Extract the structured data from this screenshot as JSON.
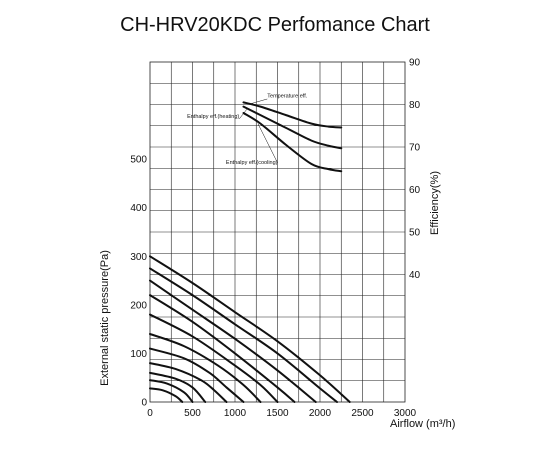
{
  "chart_data": {
    "type": "line",
    "title": "CH-HRV20KDC Perfomance Chart",
    "xlabel": "Airflow (m³/h)",
    "ylabel_left": "External static pressure(Pa)",
    "ylabel_right": "Efficiency(%)",
    "xlim": [
      0,
      3000
    ],
    "ylim_left": [
      0,
      500
    ],
    "ylim_right": [
      40,
      90
    ],
    "x_ticks": [
      "0",
      "500",
      "1000",
      "1500",
      "2000",
      "2500",
      "3000"
    ],
    "y_left_ticks": [
      "0",
      "100",
      "200",
      "300",
      "400",
      "500"
    ],
    "y_right_ticks": [
      "40",
      "50",
      "60",
      "70",
      "80",
      "90"
    ],
    "grid": true,
    "pressure_curves": [
      {
        "x": [
          0,
          500,
          1000,
          1500,
          2000,
          2350
        ],
        "y": [
          300,
          245,
          185,
          125,
          55,
          0
        ]
      },
      {
        "x": [
          0,
          500,
          1000,
          1500,
          2000,
          2200
        ],
        "y": [
          275,
          220,
          160,
          100,
          28,
          0
        ]
      },
      {
        "x": [
          0,
          500,
          1000,
          1500,
          1950
        ],
        "y": [
          250,
          190,
          130,
          65,
          0
        ]
      },
      {
        "x": [
          0,
          500,
          1000,
          1500,
          1700
        ],
        "y": [
          220,
          165,
          100,
          30,
          0
        ]
      },
      {
        "x": [
          0,
          500,
          1000,
          1300,
          1500
        ],
        "y": [
          180,
          135,
          75,
          35,
          0
        ]
      },
      {
        "x": [
          0,
          400,
          800,
          1100,
          1300
        ],
        "y": [
          140,
          115,
          75,
          35,
          0
        ]
      },
      {
        "x": [
          0,
          400,
          700,
          900,
          1100
        ],
        "y": [
          110,
          90,
          60,
          30,
          0
        ]
      },
      {
        "x": [
          0,
          300,
          600,
          750,
          900
        ],
        "y": [
          80,
          68,
          45,
          25,
          0
        ]
      },
      {
        "x": [
          0,
          300,
          500,
          650
        ],
        "y": [
          60,
          48,
          30,
          0
        ]
      },
      {
        "x": [
          0,
          200,
          400,
          500
        ],
        "y": [
          45,
          38,
          20,
          0
        ]
      },
      {
        "x": [
          0,
          150,
          300,
          380
        ],
        "y": [
          28,
          24,
          12,
          0
        ]
      }
    ],
    "efficiency_curves": [
      {
        "name": "Temperature eff.",
        "x": [
          1100,
          1300,
          1600,
          1900,
          2100,
          2250
        ],
        "y": [
          80.5,
          79.5,
          77.5,
          75.5,
          74.8,
          74.6
        ]
      },
      {
        "name": "Enthalpy eff.(heating)",
        "x": [
          1100,
          1300,
          1600,
          1900,
          2100,
          2250
        ],
        "y": [
          79.5,
          77.5,
          74.5,
          71.5,
          70.3,
          69.7
        ]
      },
      {
        "name": "Enthalpy eff.(cooling)",
        "x": [
          1100,
          1300,
          1600,
          1900,
          2100,
          2250
        ],
        "y": [
          78,
          75.5,
          70.5,
          66,
          64.8,
          64.3
        ]
      }
    ]
  }
}
